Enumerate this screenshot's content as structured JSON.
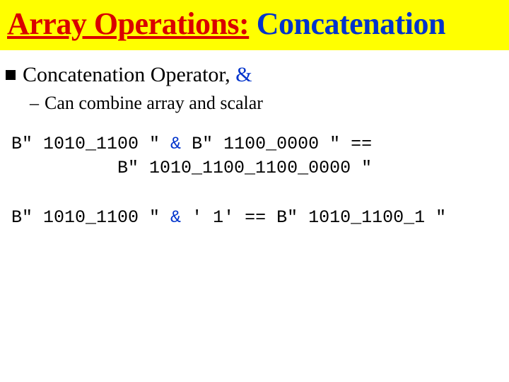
{
  "colors": {
    "title_bg": "#ffff00",
    "title_red": "#d90000",
    "title_blue": "#0033cc",
    "amp_blue": "#0033cc",
    "text": "#000000"
  },
  "title": {
    "part1": "Array Operations:",
    "part2": " Concatenation"
  },
  "bullet": {
    "prefix": "Concatenation Operator, ",
    "amp": "&"
  },
  "sub": {
    "dash": "–",
    "text": "Can combine array and scalar"
  },
  "code1": {
    "line1_a": "B\" 1010_1100 \" ",
    "line1_amp": "&",
    "line1_b": " B\" 1100_0000 \" ==",
    "line2": "          B\" 1010_1100_1100_0000 \""
  },
  "code2": {
    "line1_a": "B\" 1010_1100 \" ",
    "line1_amp": "&",
    "line1_b": " ' 1' == B\" 1010_1100_1 \""
  }
}
